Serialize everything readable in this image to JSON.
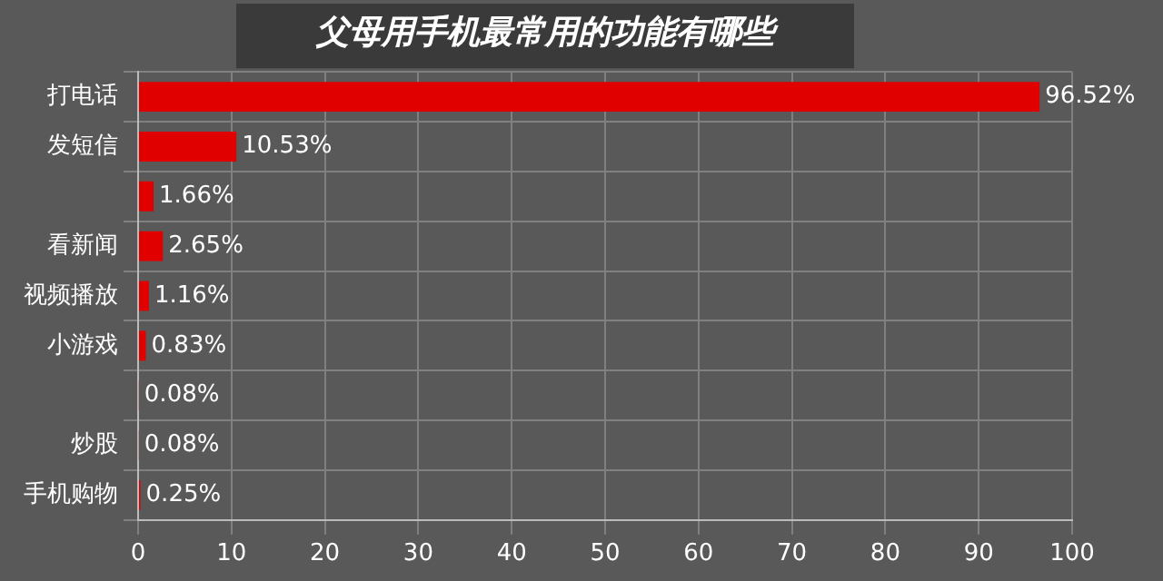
{
  "chart_data": {
    "type": "bar",
    "orientation": "horizontal",
    "title": "父母用手机最常用的功能有哪些",
    "categories": [
      "打电话",
      "发短信",
      null,
      "看新闻",
      "视频播放",
      "小游戏",
      null,
      "炒股",
      "手机购物"
    ],
    "values": [
      96.52,
      10.53,
      1.66,
      2.65,
      1.16,
      0.83,
      0.08,
      0.08,
      0.25
    ],
    "value_labels": [
      "96.52%",
      "10.53%",
      "1.66%",
      "2.65%",
      "1.16%",
      "0.83%",
      "0.08%",
      "0.08%",
      "0.25%"
    ],
    "color": "#e00000",
    "xlim": [
      0,
      100
    ],
    "xticks": [
      0,
      10,
      20,
      30,
      40,
      50,
      60,
      70,
      80,
      90,
      100
    ],
    "grid": true
  }
}
